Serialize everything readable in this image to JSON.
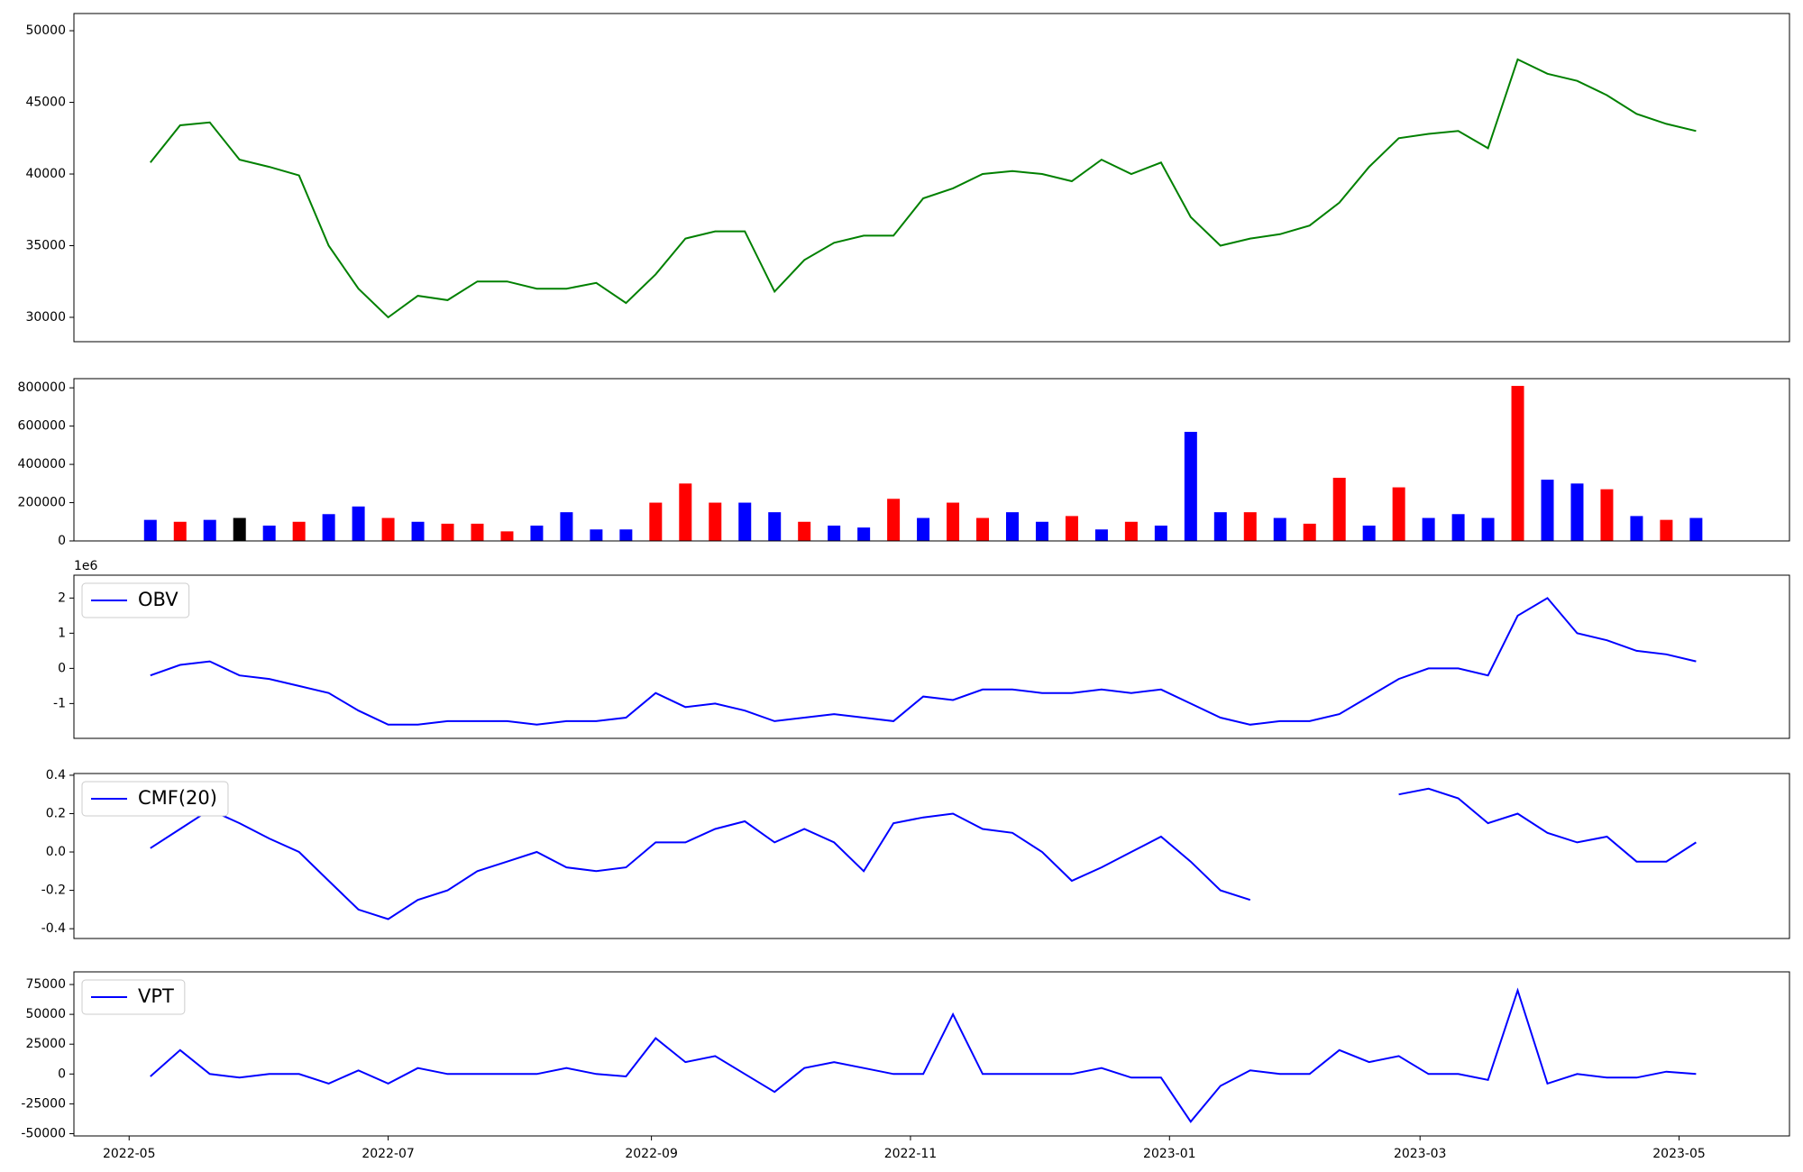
{
  "chart_data": [
    {
      "type": "line",
      "x": [
        "2022-05-06",
        "2022-05-13",
        "2022-05-20",
        "2022-05-27",
        "2022-06-03",
        "2022-06-10",
        "2022-06-17",
        "2022-06-24",
        "2022-07-01",
        "2022-07-08",
        "2022-07-15",
        "2022-07-22",
        "2022-07-29",
        "2022-08-05",
        "2022-08-12",
        "2022-08-19",
        "2022-08-26",
        "2022-09-02",
        "2022-09-09",
        "2022-09-16",
        "2022-09-23",
        "2022-09-30",
        "2022-10-07",
        "2022-10-14",
        "2022-10-21",
        "2022-10-28",
        "2022-11-04",
        "2022-11-11",
        "2022-11-18",
        "2022-11-25",
        "2022-12-02",
        "2022-12-09",
        "2022-12-16",
        "2022-12-23",
        "2022-12-30",
        "2023-01-06",
        "2023-01-13",
        "2023-01-20",
        "2023-01-27",
        "2023-02-03",
        "2023-02-10",
        "2023-02-17",
        "2023-02-24",
        "2023-03-03",
        "2023-03-10",
        "2023-03-17",
        "2023-03-24",
        "2023-03-31",
        "2023-04-07",
        "2023-04-14",
        "2023-04-21",
        "2023-04-28",
        "2023-05-05"
      ],
      "xlim": [
        "2022-04-18",
        "2023-05-27"
      ],
      "ylim": [
        28300,
        51200
      ],
      "yticks": [
        30000,
        35000,
        40000,
        45000,
        50000
      ],
      "series": [
        {
          "color": "#008000",
          "values": [
            40800,
            43400,
            43600,
            41000,
            40500,
            39900,
            35000,
            32000,
            30000,
            31500,
            31200,
            32500,
            32500,
            32000,
            32000,
            32400,
            31000,
            33000,
            35500,
            36000,
            36000,
            31800,
            34000,
            35200,
            35700,
            35700,
            38300,
            39000,
            40000,
            40200,
            40000,
            39500,
            41000,
            40000,
            40800,
            37000,
            35000,
            35500,
            35800,
            36400,
            38000,
            40500,
            42500,
            42800,
            43000,
            41800,
            48000,
            47000,
            46500,
            45500,
            44200,
            43500,
            43000
          ]
        }
      ]
    },
    {
      "type": "bar",
      "x": [
        "2022-05-06",
        "2022-05-13",
        "2022-05-20",
        "2022-05-27",
        "2022-06-03",
        "2022-06-10",
        "2022-06-17",
        "2022-06-24",
        "2022-07-01",
        "2022-07-08",
        "2022-07-15",
        "2022-07-22",
        "2022-07-29",
        "2022-08-05",
        "2022-08-12",
        "2022-08-19",
        "2022-08-26",
        "2022-09-02",
        "2022-09-09",
        "2022-09-16",
        "2022-09-23",
        "2022-09-30",
        "2022-10-07",
        "2022-10-14",
        "2022-10-21",
        "2022-10-28",
        "2022-11-04",
        "2022-11-11",
        "2022-11-18",
        "2022-11-25",
        "2022-12-02",
        "2022-12-09",
        "2022-12-16",
        "2022-12-23",
        "2022-12-30",
        "2023-01-06",
        "2023-01-13",
        "2023-01-20",
        "2023-01-27",
        "2023-02-03",
        "2023-02-10",
        "2023-02-17",
        "2023-02-24",
        "2023-03-03",
        "2023-03-10",
        "2023-03-17",
        "2023-03-24",
        "2023-03-31",
        "2023-04-07",
        "2023-04-14",
        "2023-04-21",
        "2023-04-28",
        "2023-05-05"
      ],
      "xlim": [
        "2022-04-18",
        "2023-05-27"
      ],
      "ylim": [
        0,
        848000
      ],
      "yticks": [
        0,
        200000,
        400000,
        600000,
        800000
      ],
      "values": [
        110000,
        100000,
        110000,
        120000,
        80000,
        100000,
        140000,
        180000,
        120000,
        100000,
        90000,
        90000,
        50000,
        80000,
        150000,
        60000,
        60000,
        200000,
        300000,
        200000,
        200000,
        150000,
        100000,
        80000,
        70000,
        220000,
        120000,
        200000,
        120000,
        150000,
        100000,
        130000,
        60000,
        100000,
        80000,
        570000,
        150000,
        150000,
        120000,
        90000,
        330000,
        80000,
        280000,
        120000,
        140000,
        120000,
        810000,
        320000,
        300000,
        270000,
        130000,
        110000,
        120000
      ],
      "colors": [
        "#0000ff",
        "#ff0000",
        "#0000ff",
        "#000000",
        "#0000ff",
        "#ff0000",
        "#0000ff",
        "#0000ff",
        "#ff0000",
        "#0000ff",
        "#ff0000",
        "#ff0000",
        "#ff0000",
        "#0000ff",
        "#0000ff",
        "#0000ff",
        "#0000ff",
        "#ff0000",
        "#ff0000",
        "#ff0000",
        "#0000ff",
        "#0000ff",
        "#ff0000",
        "#0000ff",
        "#0000ff",
        "#ff0000",
        "#0000ff",
        "#ff0000",
        "#ff0000",
        "#0000ff",
        "#0000ff",
        "#ff0000",
        "#0000ff",
        "#ff0000",
        "#0000ff",
        "#0000ff",
        "#0000ff",
        "#ff0000",
        "#0000ff",
        "#ff0000",
        "#ff0000",
        "#0000ff",
        "#ff0000",
        "#0000ff",
        "#0000ff",
        "#0000ff",
        "#ff0000",
        "#0000ff",
        "#0000ff",
        "#ff0000",
        "#0000ff",
        "#ff0000",
        "#0000ff"
      ]
    },
    {
      "type": "line",
      "x": [
        "2022-05-06",
        "2022-05-13",
        "2022-05-20",
        "2022-05-27",
        "2022-06-03",
        "2022-06-10",
        "2022-06-17",
        "2022-06-24",
        "2022-07-01",
        "2022-07-08",
        "2022-07-15",
        "2022-07-22",
        "2022-07-29",
        "2022-08-05",
        "2022-08-12",
        "2022-08-19",
        "2022-08-26",
        "2022-09-02",
        "2022-09-09",
        "2022-09-16",
        "2022-09-23",
        "2022-09-30",
        "2022-10-07",
        "2022-10-14",
        "2022-10-21",
        "2022-10-28",
        "2022-11-04",
        "2022-11-11",
        "2022-11-18",
        "2022-11-25",
        "2022-12-02",
        "2022-12-09",
        "2022-12-16",
        "2022-12-23",
        "2022-12-30",
        "2023-01-06",
        "2023-01-13",
        "2023-01-20",
        "2023-01-27",
        "2023-02-03",
        "2023-02-10",
        "2023-02-17",
        "2023-02-24",
        "2023-03-03",
        "2023-03-10",
        "2023-03-17",
        "2023-03-24",
        "2023-03-31",
        "2023-04-07",
        "2023-04-14",
        "2023-04-21",
        "2023-04-28",
        "2023-05-05"
      ],
      "xlim": [
        "2022-04-18",
        "2023-05-27"
      ],
      "ylim": [
        -1.99,
        2.65
      ],
      "yticks": [
        -1,
        0,
        1,
        2
      ],
      "y_offset_label": "1e6",
      "legend": "upper left",
      "series": [
        {
          "name": "OBV",
          "color": "#0000ff",
          "values": [
            -0.2,
            0.1,
            0.2,
            -0.2,
            -0.3,
            -0.5,
            -0.7,
            -1.2,
            -1.6,
            -1.6,
            -1.5,
            -1.5,
            -1.5,
            -1.6,
            -1.5,
            -1.5,
            -1.4,
            -0.7,
            -1.1,
            -1.0,
            -1.2,
            -1.5,
            -1.4,
            -1.3,
            -1.4,
            -1.5,
            -0.8,
            -0.9,
            -0.6,
            -0.6,
            -0.7,
            -0.7,
            -0.6,
            -0.7,
            -0.6,
            -1.0,
            -1.4,
            -1.6,
            -1.5,
            -1.5,
            -1.3,
            -0.8,
            -0.3,
            0.0,
            0.0,
            -0.2,
            1.5,
            2.0,
            1.0,
            0.8,
            0.5,
            0.4,
            0.2
          ]
        }
      ]
    },
    {
      "type": "line",
      "x": [
        "2022-05-06",
        "2022-05-13",
        "2022-05-20",
        "2022-05-27",
        "2022-06-03",
        "2022-06-10",
        "2022-06-17",
        "2022-06-24",
        "2022-07-01",
        "2022-07-08",
        "2022-07-15",
        "2022-07-22",
        "2022-07-29",
        "2022-08-05",
        "2022-08-12",
        "2022-08-19",
        "2022-08-26",
        "2022-09-02",
        "2022-09-09",
        "2022-09-16",
        "2022-09-23",
        "2022-09-30",
        "2022-10-07",
        "2022-10-14",
        "2022-10-21",
        "2022-10-28",
        "2022-11-04",
        "2022-11-11",
        "2022-11-18",
        "2022-11-25",
        "2022-12-02",
        "2022-12-09",
        "2022-12-16",
        "2022-12-23",
        "2022-12-30",
        "2023-01-06",
        "2023-01-13",
        "2023-01-20",
        "2023-01-27",
        "2023-02-03",
        "2023-02-10",
        "2023-02-17",
        "2023-02-24",
        "2023-03-03",
        "2023-03-10",
        "2023-03-17",
        "2023-03-24",
        "2023-03-31",
        "2023-04-07",
        "2023-04-14",
        "2023-04-21",
        "2023-04-28",
        "2023-05-05"
      ],
      "xlim": [
        "2022-04-18",
        "2023-05-27"
      ],
      "ylim": [
        -0.451,
        0.409
      ],
      "yticks": [
        -0.4,
        -0.2,
        {
          "value": 0,
          "label": "0.0"
        },
        0.2,
        0.4
      ],
      "legend": "upper left",
      "series": [
        {
          "name": "CMF(20)",
          "color": "#0000ff",
          "values": [
            0.02,
            0.12,
            0.22,
            0.15,
            0.07,
            0.0,
            -0.15,
            -0.3,
            -0.35,
            -0.25,
            -0.2,
            -0.1,
            -0.05,
            0.0,
            -0.08,
            -0.1,
            -0.08,
            0.05,
            0.05,
            0.12,
            0.16,
            0.05,
            0.12,
            0.05,
            -0.1,
            0.15,
            0.18,
            0.2,
            0.12,
            0.1,
            0.0,
            -0.15,
            -0.08,
            0.0,
            0.08,
            -0.05,
            -0.2,
            -0.25,
            null,
            null,
            null,
            null,
            0.3,
            0.33,
            0.28,
            0.15,
            0.2,
            0.1,
            0.05,
            0.08,
            -0.05,
            -0.05,
            0.05
          ]
        }
      ]
    },
    {
      "type": "line",
      "x": [
        "2022-05-06",
        "2022-05-13",
        "2022-05-20",
        "2022-05-27",
        "2022-06-03",
        "2022-06-10",
        "2022-06-17",
        "2022-06-24",
        "2022-07-01",
        "2022-07-08",
        "2022-07-15",
        "2022-07-22",
        "2022-07-29",
        "2022-08-05",
        "2022-08-12",
        "2022-08-19",
        "2022-08-26",
        "2022-09-02",
        "2022-09-09",
        "2022-09-16",
        "2022-09-23",
        "2022-09-30",
        "2022-10-07",
        "2022-10-14",
        "2022-10-21",
        "2022-10-28",
        "2022-11-04",
        "2022-11-11",
        "2022-11-18",
        "2022-11-25",
        "2022-12-02",
        "2022-12-09",
        "2022-12-16",
        "2022-12-23",
        "2022-12-30",
        "2023-01-06",
        "2023-01-13",
        "2023-01-20",
        "2023-01-27",
        "2023-02-03",
        "2023-02-10",
        "2023-02-17",
        "2023-02-24",
        "2023-03-03",
        "2023-03-10",
        "2023-03-17",
        "2023-03-24",
        "2023-03-31",
        "2023-04-07",
        "2023-04-14",
        "2023-04-21",
        "2023-04-28",
        "2023-05-05"
      ],
      "xlim": [
        "2022-04-18",
        "2023-05-27"
      ],
      "xticks": [
        {
          "value": "2022-05-01",
          "label": "2022-05"
        },
        {
          "value": "2022-07-01",
          "label": "2022-07"
        },
        {
          "value": "2022-09-01",
          "label": "2022-09"
        },
        {
          "value": "2022-11-01",
          "label": "2022-11"
        },
        {
          "value": "2023-01-01",
          "label": "2023-01"
        },
        {
          "value": "2023-03-01",
          "label": "2023-03"
        },
        {
          "value": "2023-05-01",
          "label": "2023-05"
        }
      ],
      "ylim": [
        -51900,
        85600
      ],
      "yticks": [
        -50000,
        -25000,
        0,
        25000,
        50000,
        75000
      ],
      "legend": "upper left",
      "series": [
        {
          "name": "VPT",
          "color": "#0000ff",
          "values": [
            -2000,
            20000,
            0,
            -3000,
            0,
            0,
            -8000,
            3000,
            -8000,
            5000,
            0,
            0,
            0,
            0,
            5000,
            0,
            -2000,
            30000,
            10000,
            15000,
            0,
            -15000,
            5000,
            10000,
            5000,
            0,
            0,
            50000,
            0,
            0,
            0,
            0,
            5000,
            -3000,
            -3000,
            -40000,
            -10000,
            3000,
            0,
            0,
            20000,
            10000,
            15000,
            0,
            0,
            -5000,
            70000,
            -8000,
            0,
            -3000,
            -3000,
            2000,
            0
          ]
        }
      ]
    }
  ]
}
